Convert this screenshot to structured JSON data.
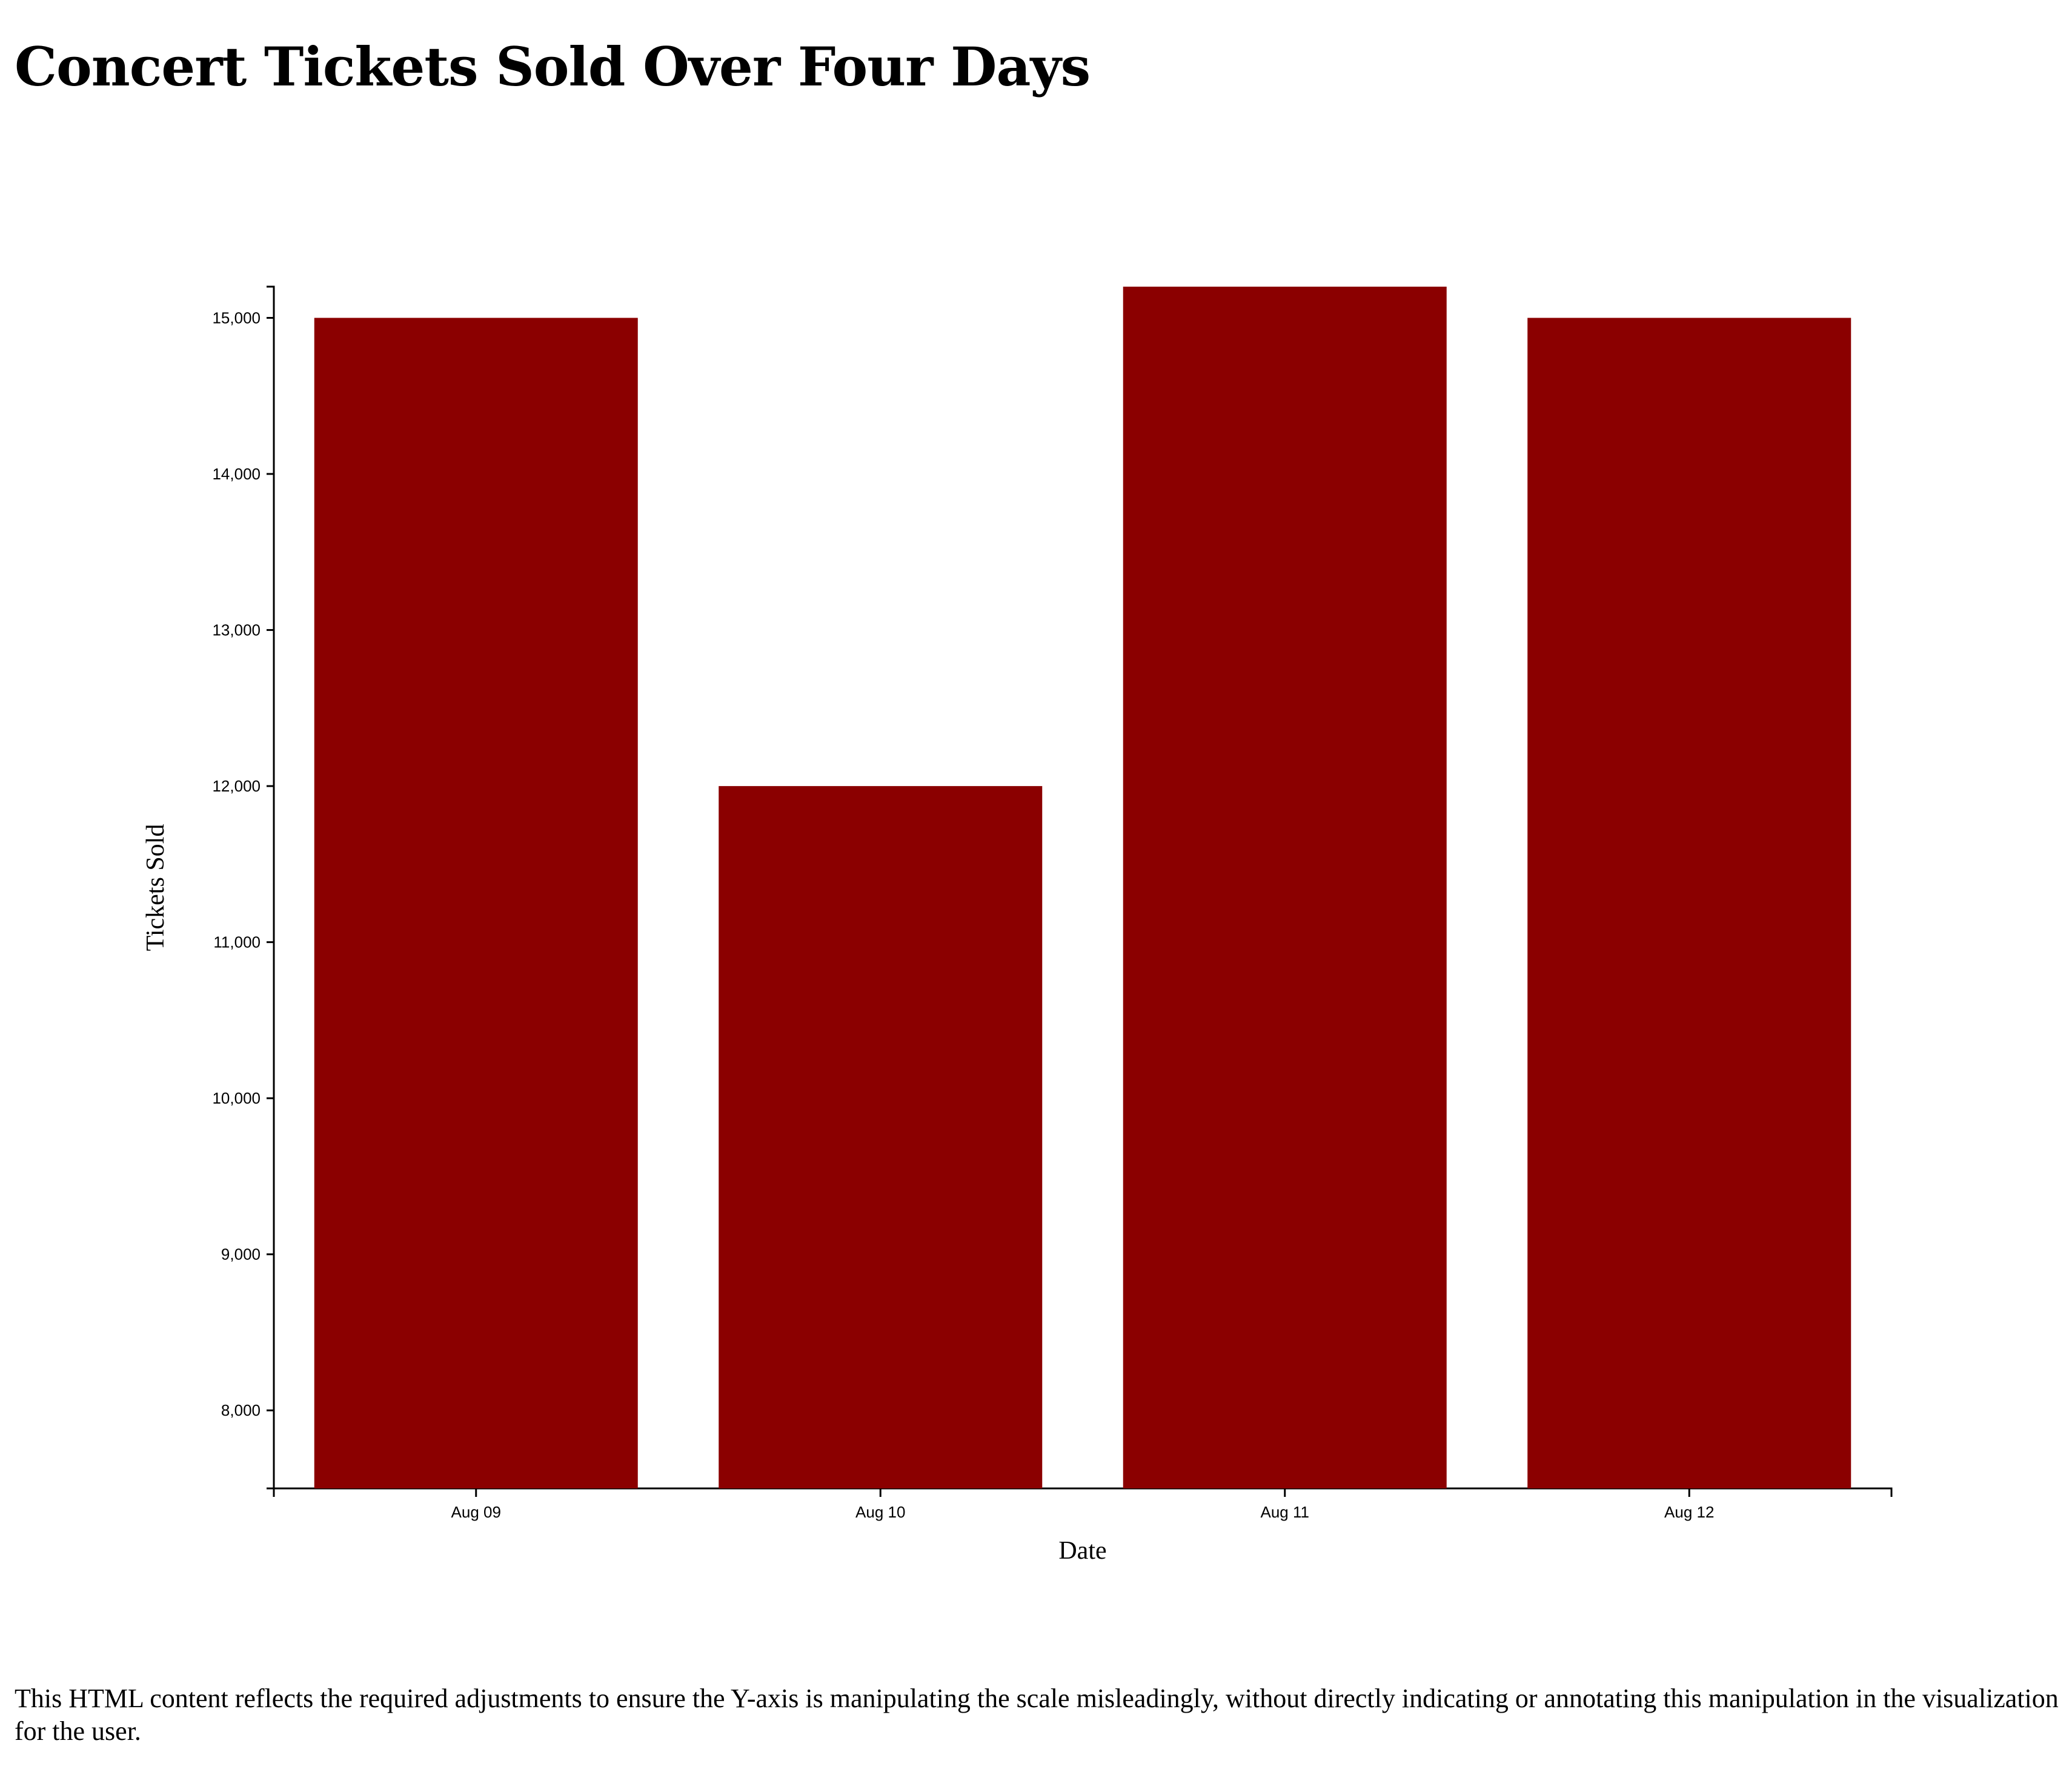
{
  "title": "Concert Tickets Sold Over Four Days",
  "footnote": "This HTML content reflects the required adjustments to ensure the Y-axis is manipulating the scale misleadingly, without directly indicating or annotating this manipulation in the visualization for the user.",
  "colors": {
    "bar": "#8B0000",
    "axis": "#000000"
  },
  "chart_data": {
    "type": "bar",
    "categories": [
      "Aug 09",
      "Aug 10",
      "Aug 11",
      "Aug 12"
    ],
    "values": [
      15000,
      12000,
      15200,
      15000
    ],
    "xlabel": "Date",
    "ylabel": "Tickets Sold",
    "ylim": [
      7500,
      15200
    ],
    "yticks": [
      8000,
      9000,
      10000,
      11000,
      12000,
      13000,
      14000,
      15000
    ],
    "ytick_labels": [
      "8,000",
      "9,000",
      "10,000",
      "11,000",
      "12,000",
      "13,000",
      "14,000",
      "15,000"
    ],
    "grid": false
  }
}
